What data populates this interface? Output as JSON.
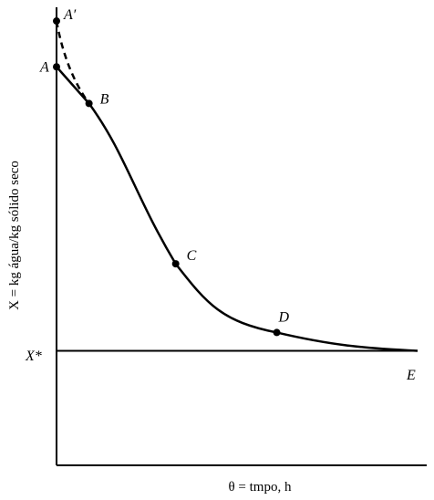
{
  "chart_data": {
    "type": "line",
    "title": "",
    "xlabel": "θ = tmpo, h",
    "ylabel": "X = kg água/kg sólido seco",
    "xlim": [
      0,
      10
    ],
    "ylim": [
      0,
      10
    ],
    "grid": false,
    "series": [
      {
        "style": "dashed",
        "x": [
          0,
          0.9
        ],
        "y": [
          9.7,
          7.9
        ]
      },
      {
        "style": "solid",
        "x": [
          0,
          0.9,
          3.3,
          6.1,
          10
        ],
        "y": [
          8.7,
          7.9,
          4.4,
          2.9,
          2.5
        ]
      }
    ],
    "equilibrium_line": {
      "label": "X*",
      "y": 2.5,
      "end_label": "E"
    },
    "points": [
      {
        "label": "A′",
        "x": 0,
        "y": 9.7
      },
      {
        "label": "A",
        "x": 0,
        "y": 8.7
      },
      {
        "label": "B",
        "x": 0.9,
        "y": 7.9
      },
      {
        "label": "C",
        "x": 3.3,
        "y": 4.4
      },
      {
        "label": "D",
        "x": 6.1,
        "y": 2.9
      }
    ],
    "colors": {
      "line": "#000000",
      "background": "#ffffff"
    }
  }
}
